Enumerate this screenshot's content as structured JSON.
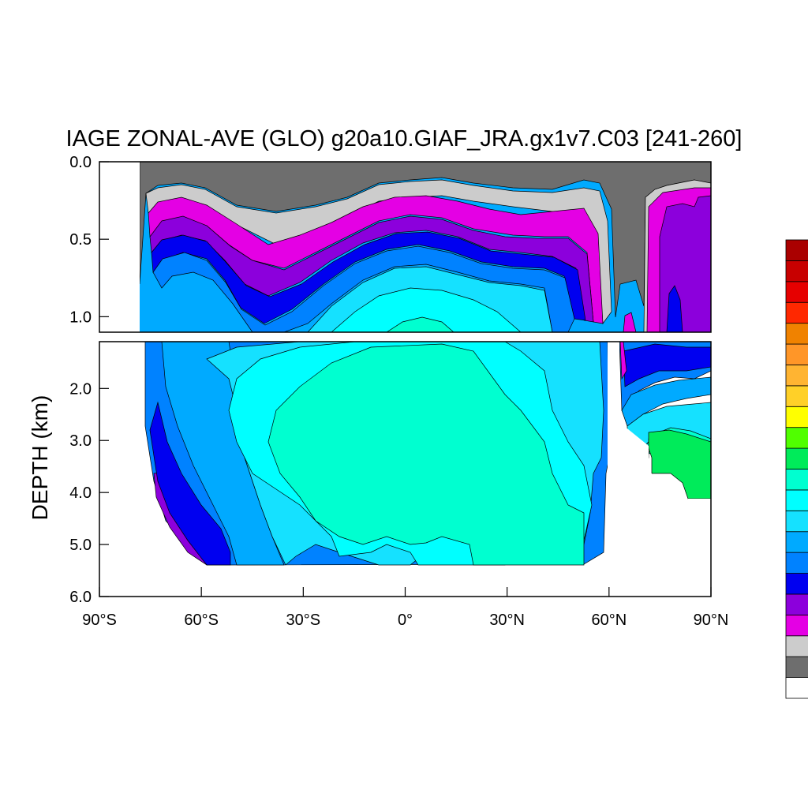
{
  "chart_data": {
    "type": "heatmap",
    "subtype": "filled-contour",
    "title": "IAGE ZONAL-AVE (GLO) g20a10.GIAF_JRA.gx1v7.C03 [241-260]",
    "xlabel": "",
    "ylabel": "DEPTH (km)",
    "x_ticks": [
      "90°S",
      "60°S",
      "30°S",
      "0°",
      "30°N",
      "60°N",
      "90°N"
    ],
    "x_tick_values": [
      -90,
      -60,
      -30,
      0,
      30,
      60,
      90
    ],
    "xlim": [
      -90,
      90
    ],
    "upper_panel": {
      "ylim": [
        0.0,
        1.1
      ],
      "y_ticks": [
        "0.0",
        "0.5",
        "1.0"
      ],
      "y_tick_values": [
        0.0,
        0.5,
        1.0
      ]
    },
    "lower_panel": {
      "ylim": [
        1.1,
        6.0
      ],
      "y_ticks": [
        "2.0",
        "3.0",
        "4.0",
        "5.0",
        "6.0"
      ],
      "y_tick_values": [
        2.0,
        3.0,
        4.0,
        5.0,
        6.0
      ]
    },
    "colorbar": {
      "placement": "right",
      "levels_bottom_to_top": [
        "#ffffff",
        "#6e6e6e",
        "#cccccc",
        "#e400e4",
        "#8c00dc",
        "#0000f0",
        "#0082ff",
        "#00aaff",
        "#15e1ff",
        "#00ffff",
        "#00ffd0",
        "#00eb5a",
        "#50ff00",
        "#ffff00",
        "#ffd028",
        "#ffb432",
        "#ff9628",
        "#f08200",
        "#ff2800",
        "#e60000",
        "#c80000",
        "#aa0000"
      ]
    },
    "colors": {
      "land_gap": "#ffffff",
      "frame": "#000000"
    }
  }
}
